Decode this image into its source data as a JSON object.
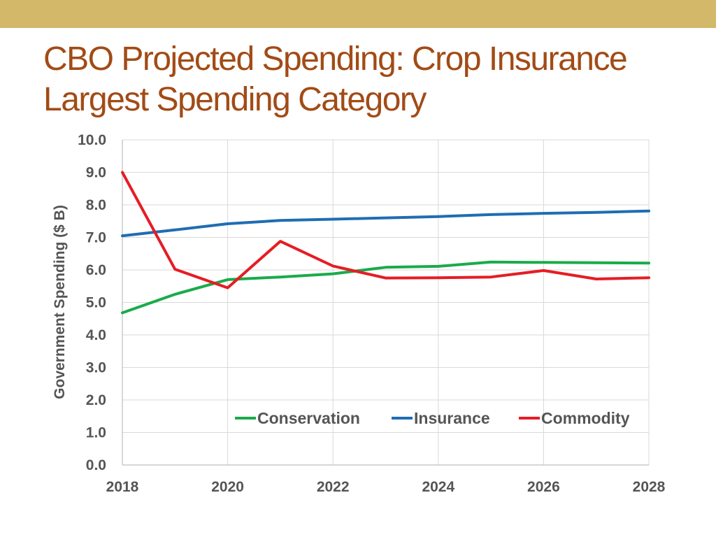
{
  "title": {
    "line1": "CBO Projected Spending: Crop Insurance",
    "line2": "Largest Spending Category"
  },
  "chart_data": {
    "type": "line",
    "title": "CBO Projected Spending: Crop Insurance Largest Spending Category",
    "xlabel": "",
    "ylabel": "Government Spending ($ B)",
    "x": [
      2018,
      2019,
      2020,
      2021,
      2022,
      2023,
      2024,
      2025,
      2026,
      2027,
      2028
    ],
    "xlim": [
      2018,
      2028
    ],
    "ylim": [
      0,
      10
    ],
    "x_ticks": [
      "2018",
      "2020",
      "2022",
      "2024",
      "2026",
      "2028"
    ],
    "y_ticks": [
      "0.0",
      "1.0",
      "2.0",
      "3.0",
      "4.0",
      "5.0",
      "6.0",
      "7.0",
      "8.0",
      "9.0",
      "10.0"
    ],
    "grid": true,
    "legend_position": "bottom-right",
    "series": [
      {
        "name": "Conservation",
        "color": "#1aab4b",
        "values": [
          4.68,
          5.25,
          5.7,
          5.78,
          5.88,
          6.08,
          6.11,
          6.24,
          6.23,
          6.22,
          6.21
        ]
      },
      {
        "name": "Insurance",
        "color": "#1f6db3",
        "values": [
          7.05,
          7.23,
          7.42,
          7.52,
          7.56,
          7.6,
          7.64,
          7.7,
          7.74,
          7.77,
          7.81
        ]
      },
      {
        "name": "Commodity",
        "color": "#e61c24",
        "values": [
          9.0,
          6.02,
          5.45,
          6.88,
          6.12,
          5.75,
          5.76,
          5.78,
          5.98,
          5.72,
          5.76
        ]
      }
    ]
  }
}
